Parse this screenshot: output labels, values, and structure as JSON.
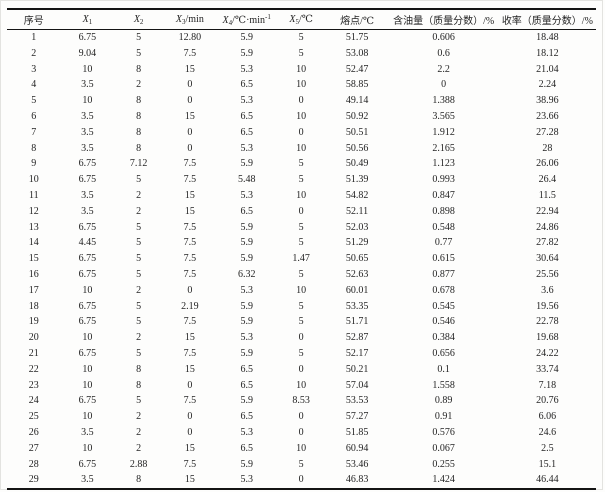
{
  "table": {
    "columns": [
      {
        "label": "序号"
      },
      {
        "base": "X",
        "sub": "1"
      },
      {
        "base": "X",
        "sub": "2"
      },
      {
        "base": "X",
        "sub": "3",
        "suffix": "/min"
      },
      {
        "base": "X",
        "sub": "4",
        "suffix": "/℃·min",
        "sup": "-1"
      },
      {
        "base": "X",
        "sub": "5",
        "suffix": "/℃"
      },
      {
        "label": "熔点/℃"
      },
      {
        "label": "含油量（质量分数）/%"
      },
      {
        "label": "收率（质量分数）/%"
      }
    ],
    "col_widths_percent": [
      9.1,
      9.1,
      8.3,
      9.1,
      10.2,
      8.3,
      10.7,
      18.7,
      16.5
    ],
    "rows": [
      [
        "1",
        "6.75",
        "5",
        "12.80",
        "5.9",
        "5",
        "51.75",
        "0.606",
        "18.48"
      ],
      [
        "2",
        "9.04",
        "5",
        "7.5",
        "5.9",
        "5",
        "53.08",
        "0.6",
        "18.12"
      ],
      [
        "3",
        "10",
        "8",
        "15",
        "5.3",
        "10",
        "52.47",
        "2.2",
        "21.04"
      ],
      [
        "4",
        "3.5",
        "2",
        "0",
        "6.5",
        "10",
        "58.85",
        "0",
        "2.24"
      ],
      [
        "5",
        "10",
        "8",
        "0",
        "5.3",
        "0",
        "49.14",
        "1.388",
        "38.96"
      ],
      [
        "6",
        "3.5",
        "8",
        "15",
        "6.5",
        "10",
        "50.92",
        "3.565",
        "23.66"
      ],
      [
        "7",
        "3.5",
        "8",
        "0",
        "6.5",
        "0",
        "50.51",
        "1.912",
        "27.28"
      ],
      [
        "8",
        "3.5",
        "8",
        "0",
        "5.3",
        "10",
        "50.56",
        "2.165",
        "28"
      ],
      [
        "9",
        "6.75",
        "7.12",
        "7.5",
        "5.9",
        "5",
        "50.49",
        "1.123",
        "26.06"
      ],
      [
        "10",
        "6.75",
        "5",
        "7.5",
        "5.48",
        "5",
        "51.39",
        "0.993",
        "26.4"
      ],
      [
        "11",
        "3.5",
        "2",
        "15",
        "5.3",
        "10",
        "54.82",
        "0.847",
        "11.5"
      ],
      [
        "12",
        "3.5",
        "2",
        "15",
        "6.5",
        "0",
        "52.11",
        "0.898",
        "22.94"
      ],
      [
        "13",
        "6.75",
        "5",
        "7.5",
        "5.9",
        "5",
        "52.03",
        "0.548",
        "24.86"
      ],
      [
        "14",
        "4.45",
        "5",
        "7.5",
        "5.9",
        "5",
        "51.29",
        "0.77",
        "27.82"
      ],
      [
        "15",
        "6.75",
        "5",
        "7.5",
        "5.9",
        "1.47",
        "50.65",
        "0.615",
        "30.64"
      ],
      [
        "16",
        "6.75",
        "5",
        "7.5",
        "6.32",
        "5",
        "52.63",
        "0.877",
        "25.56"
      ],
      [
        "17",
        "10",
        "2",
        "0",
        "5.3",
        "10",
        "60.01",
        "0.678",
        "3.6"
      ],
      [
        "18",
        "6.75",
        "5",
        "2.19",
        "5.9",
        "5",
        "53.35",
        "0.545",
        "19.56"
      ],
      [
        "19",
        "6.75",
        "5",
        "7.5",
        "5.9",
        "5",
        "51.71",
        "0.546",
        "22.78"
      ],
      [
        "20",
        "10",
        "2",
        "15",
        "5.3",
        "0",
        "52.87",
        "0.384",
        "19.68"
      ],
      [
        "21",
        "6.75",
        "5",
        "7.5",
        "5.9",
        "5",
        "52.17",
        "0.656",
        "24.22"
      ],
      [
        "22",
        "10",
        "8",
        "15",
        "6.5",
        "0",
        "50.21",
        "0.1",
        "33.74"
      ],
      [
        "23",
        "10",
        "8",
        "0",
        "6.5",
        "10",
        "57.04",
        "1.558",
        "7.18"
      ],
      [
        "24",
        "6.75",
        "5",
        "7.5",
        "5.9",
        "8.53",
        "53.53",
        "0.89",
        "20.76"
      ],
      [
        "25",
        "10",
        "2",
        "0",
        "6.5",
        "0",
        "57.27",
        "0.91",
        "6.06"
      ],
      [
        "26",
        "3.5",
        "2",
        "0",
        "5.3",
        "0",
        "51.85",
        "0.576",
        "24.6"
      ],
      [
        "27",
        "10",
        "2",
        "15",
        "6.5",
        "10",
        "60.94",
        "0.067",
        "2.5"
      ],
      [
        "28",
        "6.75",
        "2.88",
        "7.5",
        "5.9",
        "5",
        "53.46",
        "0.255",
        "15.1"
      ],
      [
        "29",
        "3.5",
        "8",
        "15",
        "5.3",
        "0",
        "46.83",
        "1.424",
        "46.44"
      ]
    ]
  }
}
